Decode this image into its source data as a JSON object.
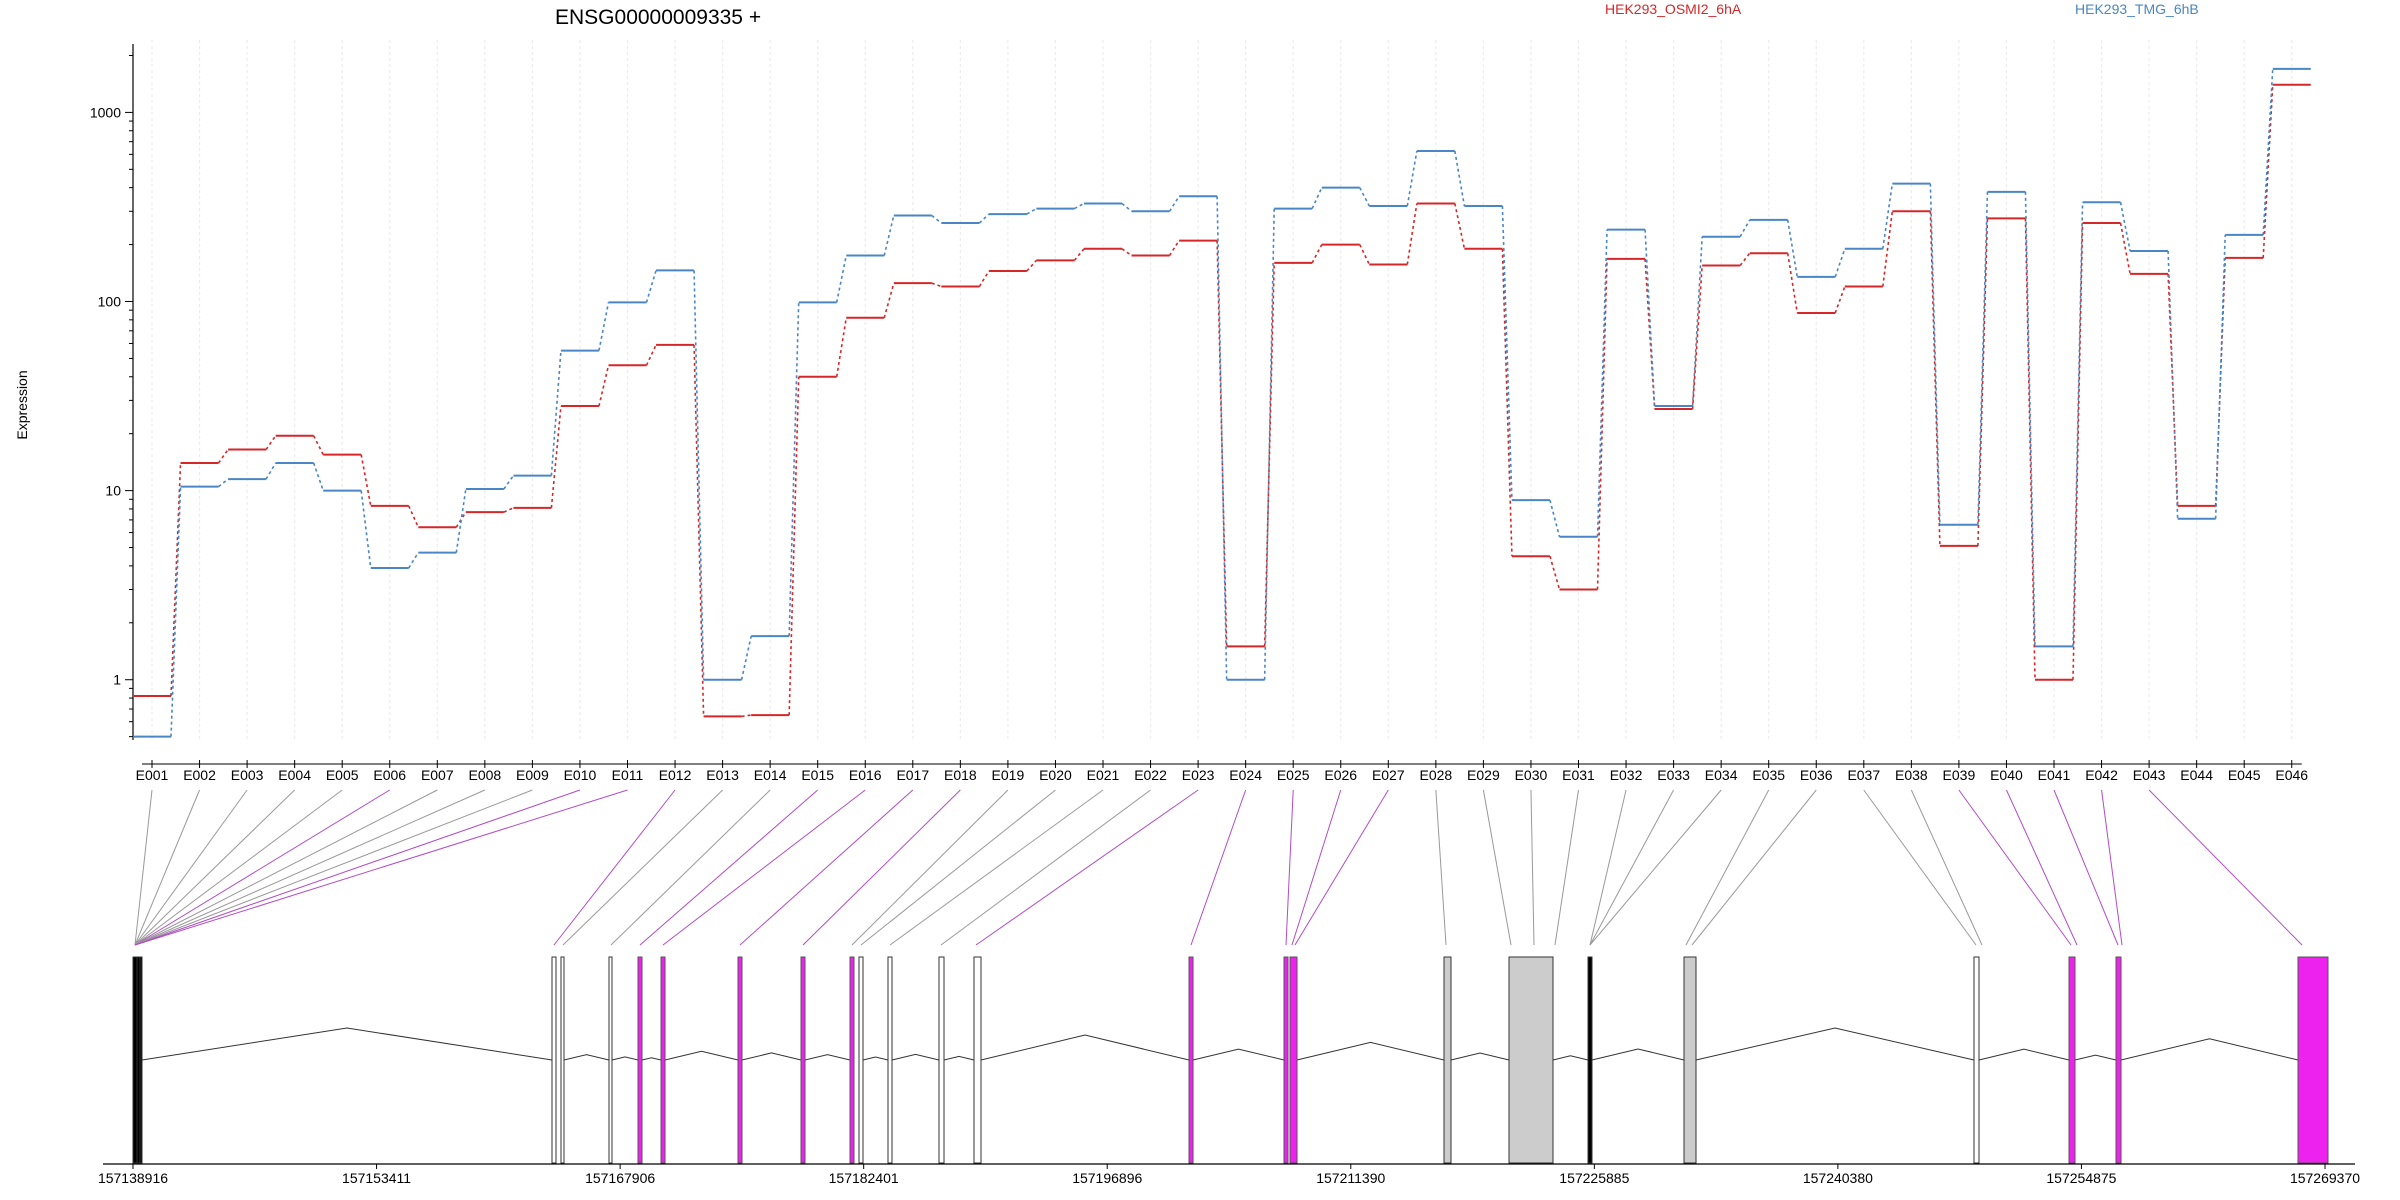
{
  "chart_data": {
    "type": "line",
    "title": "ENSG00000009335 +",
    "ylabel": "Expression",
    "yscale": "log",
    "ylim": [
      0.48,
      2300
    ],
    "yticks": [
      1,
      10,
      100,
      1000
    ],
    "ytick_labels": [
      "1",
      "10",
      "100",
      "1000"
    ],
    "categories": [
      "E001",
      "E002",
      "E003",
      "E004",
      "E005",
      "E006",
      "E007",
      "E008",
      "E009",
      "E010",
      "E011",
      "E012",
      "E013",
      "E014",
      "E015",
      "E016",
      "E017",
      "E018",
      "E019",
      "E020",
      "E021",
      "E022",
      "E023",
      "E024",
      "E025",
      "E026",
      "E027",
      "E028",
      "E029",
      "E030",
      "E031",
      "E032",
      "E033",
      "E034",
      "E035",
      "E036",
      "E037",
      "E038",
      "E039",
      "E040",
      "E041",
      "E042",
      "E043",
      "E044",
      "E045",
      "E046"
    ],
    "series": [
      {
        "name": "HEK293_OSMI2_6hA",
        "color": "#d62728",
        "values": [
          0.82,
          14,
          16.5,
          19.5,
          15.5,
          8.3,
          6.4,
          7.7,
          8.1,
          28,
          46,
          59,
          0.64,
          0.65,
          40,
          82,
          125,
          120,
          145,
          165,
          190,
          175,
          210,
          1.5,
          160,
          200,
          157,
          330,
          190,
          4.5,
          3.0,
          168,
          27,
          155,
          180,
          87,
          120,
          300,
          5.1,
          275,
          1.0,
          260,
          140,
          8.3,
          170,
          1400
        ]
      },
      {
        "name": "HEK293_TMG_6hB",
        "color": "#4a86c5",
        "values": [
          0.5,
          10.5,
          11.5,
          14,
          10,
          3.9,
          4.7,
          10.2,
          12,
          55,
          99,
          146,
          1.0,
          1.7,
          99,
          175,
          285,
          260,
          290,
          310,
          330,
          300,
          360,
          1.0,
          310,
          400,
          320,
          625,
          320,
          8.9,
          5.7,
          240,
          28,
          220,
          270,
          135,
          190,
          420,
          6.6,
          380,
          1.5,
          335,
          185,
          7.1,
          225,
          1700
        ]
      }
    ],
    "gene_model": {
      "coordinate_labels": [
        "157138916",
        "157153411",
        "157167906",
        "157182401",
        "157196896",
        "157211390",
        "157225885",
        "157240380",
        "157254875",
        "157269370"
      ],
      "highlight_color": "#ee22ee",
      "exon_fill": "#cccccc"
    }
  }
}
